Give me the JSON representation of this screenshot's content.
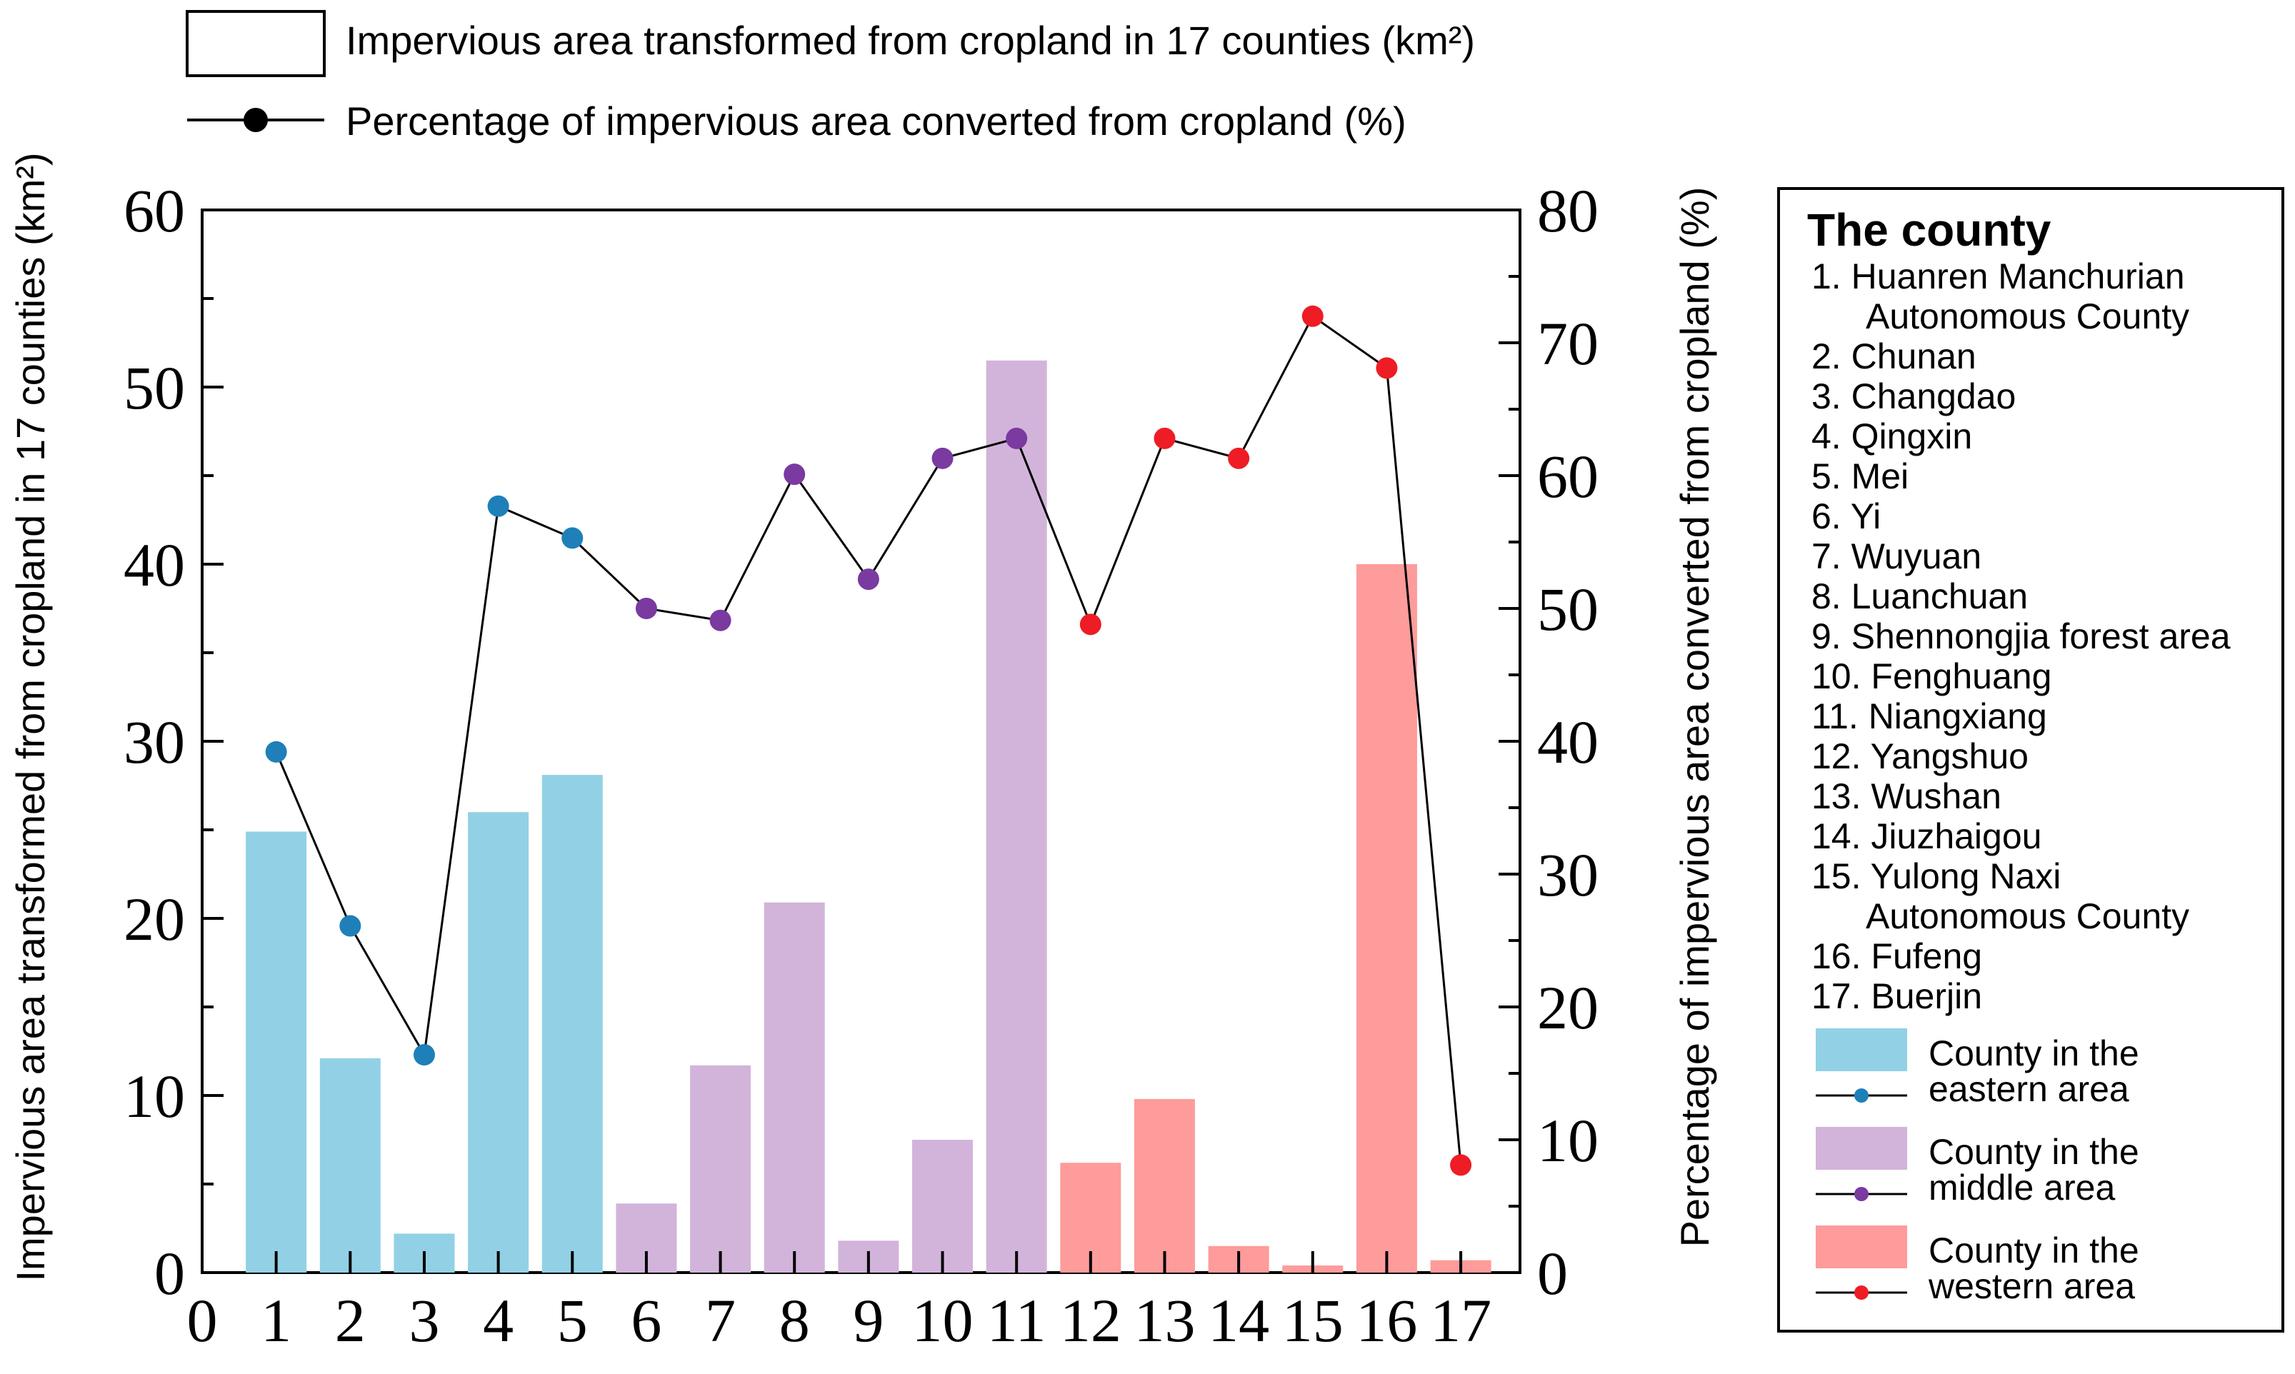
{
  "chart_data": {
    "type": "bar",
    "categories": [
      "1",
      "2",
      "3",
      "4",
      "5",
      "6",
      "7",
      "8",
      "9",
      "10",
      "11",
      "12",
      "13",
      "14",
      "15",
      "16",
      "17"
    ],
    "x_ticks": [
      "0",
      "1",
      "2",
      "3",
      "4",
      "5",
      "6",
      "7",
      "8",
      "9",
      "10",
      "11",
      "12",
      "13",
      "14",
      "15",
      "16",
      "17"
    ],
    "series": [
      {
        "name": "Impervious area transformed from cropland in 17 counties (km²)",
        "type": "bar",
        "axis": "left",
        "values": [
          24.9,
          12.1,
          2.2,
          26.0,
          28.1,
          3.9,
          11.7,
          20.9,
          1.8,
          7.5,
          51.5,
          6.2,
          9.8,
          1.5,
          0.4,
          40.0,
          0.7
        ]
      },
      {
        "name": "Percentage of impervious area converted from cropland (%)",
        "type": "line",
        "axis": "right",
        "values": [
          39.2,
          26.1,
          16.4,
          57.7,
          55.3,
          50.0,
          49.1,
          60.1,
          52.2,
          61.3,
          62.8,
          48.8,
          62.8,
          61.3,
          72.0,
          68.1,
          8.1
        ]
      }
    ],
    "region_of_county": [
      "eastern",
      "eastern",
      "eastern",
      "eastern",
      "eastern",
      "middle",
      "middle",
      "middle",
      "middle",
      "middle",
      "middle",
      "western",
      "western",
      "western",
      "western",
      "western",
      "western"
    ],
    "colors": {
      "eastern_bar": "#92d1e5",
      "eastern_dot": "#1f7fb8",
      "middle_bar": "#d2b4da",
      "middle_dot": "#7a3aa0",
      "western_bar": "#fe9b9b",
      "western_dot": "#ee1c25",
      "axis": "#000000"
    },
    "ylabel": "Impervious area transformed from cropland in 17 counties (km²)",
    "y2label": "Percentage of impervious area converted from cropland (%)",
    "ylim": [
      0,
      60
    ],
    "y_ticks": [
      "0",
      "10",
      "20",
      "30",
      "40",
      "50",
      "60"
    ],
    "y2lim": [
      0,
      80
    ],
    "y2_ticks": [
      "0",
      "10",
      "20",
      "30",
      "40",
      "50",
      "60",
      "70",
      "80"
    ],
    "xlim": [
      0,
      17.8
    ]
  },
  "top_legend": {
    "bar_label": "Impervious area transformed from cropland in 17 counties (km²)",
    "line_label": "Percentage of impervious area converted from cropland (%)"
  },
  "side_legend": {
    "title": "The county",
    "counties": [
      [
        "1. Huanren Manchurian",
        "Autonomous County"
      ],
      [
        "2. Chunan"
      ],
      [
        "3. Changdao"
      ],
      [
        "4. Qingxin"
      ],
      [
        "5. Mei"
      ],
      [
        "6. Yi"
      ],
      [
        "7. Wuyuan"
      ],
      [
        "8. Luanchuan"
      ],
      [
        "9. Shennongjia forest area"
      ],
      [
        "10. Fenghuang"
      ],
      [
        "11. Niangxiang"
      ],
      [
        "12. Yangshuo"
      ],
      [
        "13. Wushan"
      ],
      [
        "14. Jiuzhaigou"
      ],
      [
        "15. Yulong Naxi",
        "Autonomous County"
      ],
      [
        "16. Fufeng"
      ],
      [
        "17. Buerjin"
      ]
    ],
    "regions": [
      {
        "line1": "County in the",
        "line2": "eastern area",
        "bar_color": "#92d1e5",
        "dot_color": "#1f7fb8"
      },
      {
        "line1": "County in the",
        "line2": "middle area",
        "bar_color": "#d2b4da",
        "dot_color": "#7a3aa0"
      },
      {
        "line1": "County in the",
        "line2": "western area",
        "bar_color": "#fe9b9b",
        "dot_color": "#ee1c25"
      }
    ]
  }
}
